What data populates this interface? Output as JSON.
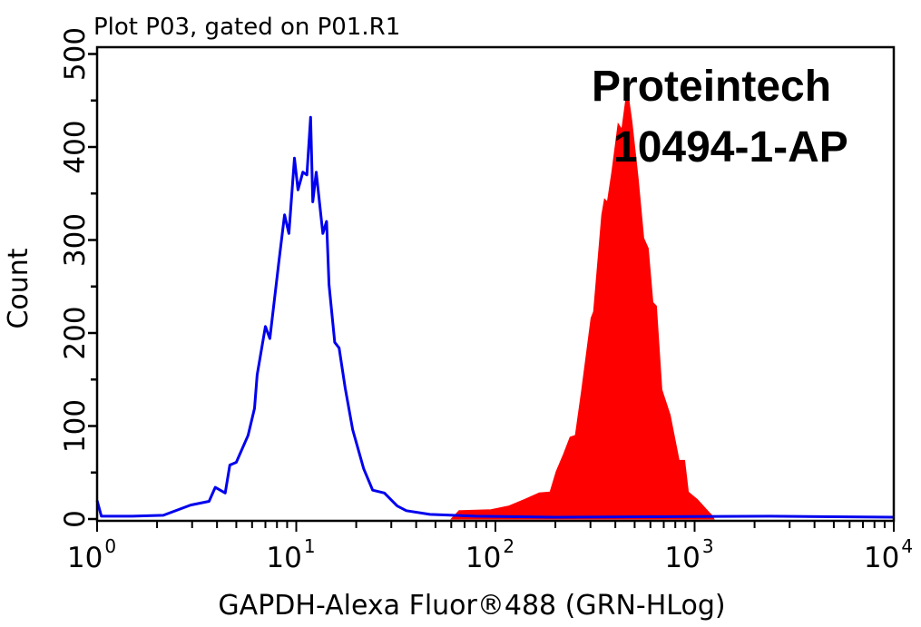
{
  "chart_data": {
    "type": "area",
    "title": "Plot P03, gated on P01.R1",
    "xlabel": "GAPDH-Alexa Fluor®488 (GRN-HLog)",
    "ylabel": "Count",
    "x_scale": "log",
    "xlim": [
      1,
      10000
    ],
    "ylim": [
      0,
      505
    ],
    "x_ticks": [
      {
        "base": "10",
        "exp": "0",
        "value": 1
      },
      {
        "base": "10",
        "exp": "1",
        "value": 10
      },
      {
        "base": "10",
        "exp": "2",
        "value": 100
      },
      {
        "base": "10",
        "exp": "3",
        "value": 1000
      },
      {
        "base": "10",
        "exp": "4",
        "value": 10000
      }
    ],
    "y_ticks": [
      "0",
      "100",
      "200",
      "300",
      "400",
      "500"
    ],
    "grid": false,
    "annotations": [
      "Proteintech",
      "10494-1-AP"
    ],
    "series": [
      {
        "style": "filled",
        "color": "#ff0000",
        "points": [
          [
            60,
            0
          ],
          [
            65.7,
            9
          ],
          [
            94.9,
            10
          ],
          [
            117,
            14
          ],
          [
            140,
            21
          ],
          [
            166,
            28
          ],
          [
            188,
            29
          ],
          [
            202,
            51
          ],
          [
            220,
            70
          ],
          [
            237,
            88
          ],
          [
            252,
            90
          ],
          [
            271,
            138
          ],
          [
            302,
            216
          ],
          [
            311,
            223
          ],
          [
            342,
            327
          ],
          [
            353,
            344
          ],
          [
            365,
            341
          ],
          [
            384,
            373
          ],
          [
            413,
            425
          ],
          [
            431,
            419
          ],
          [
            459,
            463
          ],
          [
            484,
            428
          ],
          [
            521,
            366
          ],
          [
            555,
            302
          ],
          [
            585,
            291
          ],
          [
            617,
            233
          ],
          [
            643,
            229
          ],
          [
            685,
            139
          ],
          [
            753,
            112
          ],
          [
            836,
            63
          ],
          [
            891,
            63
          ],
          [
            930,
            29
          ],
          [
            1032,
            21
          ],
          [
            1183,
            7
          ],
          [
            1222,
            4
          ],
          [
            1250,
            0
          ]
        ]
      },
      {
        "style": "line",
        "color": "#0000ee",
        "points": [
          [
            1,
            20
          ],
          [
            1.05,
            3
          ],
          [
            1.5,
            3
          ],
          [
            2.15,
            4
          ],
          [
            2.95,
            15
          ],
          [
            3.65,
            19
          ],
          [
            3.92,
            34
          ],
          [
            4.4,
            28
          ],
          [
            4.64,
            58
          ],
          [
            5.0,
            61
          ],
          [
            5.73,
            90
          ],
          [
            6.17,
            119
          ],
          [
            6.36,
            155
          ],
          [
            7.0,
            207
          ],
          [
            7.37,
            194
          ],
          [
            8.19,
            278
          ],
          [
            8.73,
            327
          ],
          [
            9.19,
            307
          ],
          [
            9.79,
            388
          ],
          [
            10.2,
            354
          ],
          [
            10.8,
            373
          ],
          [
            11.3,
            370
          ],
          [
            11.8,
            432
          ],
          [
            12.1,
            341
          ],
          [
            12.6,
            373
          ],
          [
            13.6,
            307
          ],
          [
            14.2,
            320
          ],
          [
            14.6,
            252
          ],
          [
            15.6,
            190
          ],
          [
            16.4,
            184
          ],
          [
            17.6,
            141
          ],
          [
            19.2,
            96
          ],
          [
            21.8,
            54
          ],
          [
            24.2,
            31
          ],
          [
            27.7,
            28
          ],
          [
            32.1,
            14
          ],
          [
            35.7,
            9
          ],
          [
            46.9,
            5
          ],
          [
            80,
            3
          ],
          [
            200,
            2
          ],
          [
            2400,
            3
          ],
          [
            10000,
            2
          ]
        ]
      }
    ]
  }
}
